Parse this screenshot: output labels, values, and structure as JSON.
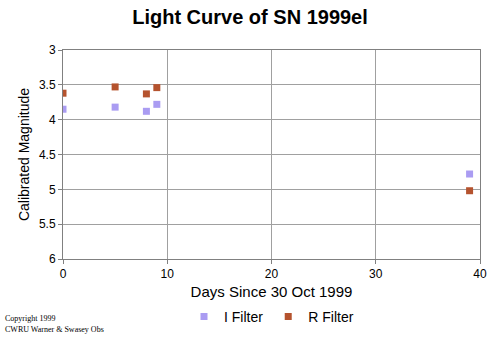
{
  "chart_data": {
    "type": "scatter",
    "title": "Light Curve of SN 1999el",
    "x_label": "Days Since 30 Oct 1999",
    "y_label": "Calibrated Magnitude",
    "xlim": [
      0,
      40
    ],
    "xticks": [
      0,
      10,
      20,
      30,
      40
    ],
    "ylim": [
      6,
      3
    ],
    "yticks": [
      3,
      3.5,
      4,
      4.5,
      5,
      5.5,
      6
    ],
    "grid": true,
    "legend": "bottom",
    "marker": "square",
    "annotations": [
      "Copyright 1999",
      "CWRU Warner & Swasey Obs"
    ],
    "series": [
      {
        "name": "I Filter",
        "color": "#aa9cf2",
        "x": [
          0,
          5,
          8,
          9,
          39
        ],
        "values": [
          3.85,
          3.82,
          3.88,
          3.78,
          4.78
        ]
      },
      {
        "name": "R Filter",
        "color": "#b5532e",
        "x": [
          0,
          5,
          8,
          9,
          39
        ],
        "values": [
          3.62,
          3.53,
          3.63,
          3.54,
          5.02
        ]
      }
    ]
  }
}
